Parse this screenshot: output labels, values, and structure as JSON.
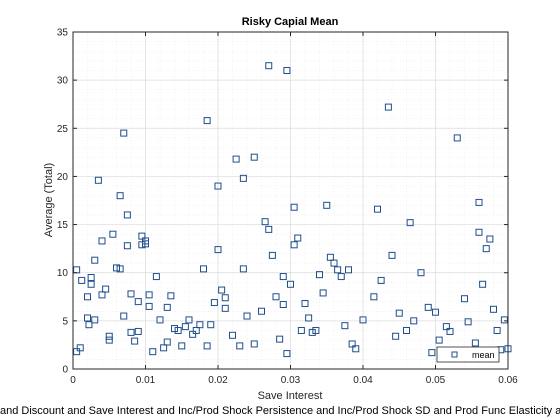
{
  "chart_data": {
    "type": "scatter",
    "title": "Risky Capial Mean",
    "xlabel": "Save Interest",
    "ylabel": "Average (Total)",
    "caption": "and Discount and Save Interest and Inc/Prod Shock Persistence and Inc/Prod Shock SD and Prod Func Elasticity a",
    "xlim": [
      0,
      0.06
    ],
    "ylim": [
      0,
      35
    ],
    "xticks": [
      0,
      0.01,
      0.02,
      0.03,
      0.04,
      0.05,
      0.06
    ],
    "xtick_labels": [
      "0",
      "0.01",
      "0.02",
      "0.03",
      "0.04",
      "0.05",
      "0.06"
    ],
    "yticks": [
      0,
      5,
      10,
      15,
      20,
      25,
      30,
      35
    ],
    "ytick_labels": [
      "0",
      "5",
      "10",
      "15",
      "20",
      "25",
      "30",
      "35"
    ],
    "grid": true,
    "minor_grid": true,
    "legend_position": "bottom-right",
    "series": [
      {
        "name": "mean",
        "marker": "square",
        "color": "#1f4e8c",
        "points": [
          [
            0.0005,
            10.3
          ],
          [
            0.0005,
            1.8
          ],
          [
            0.001,
            2.2
          ],
          [
            0.0012,
            9.2
          ],
          [
            0.002,
            7.5
          ],
          [
            0.002,
            5.3
          ],
          [
            0.0022,
            4.6
          ],
          [
            0.0025,
            9.5
          ],
          [
            0.003,
            11.3
          ],
          [
            0.0025,
            8.8
          ],
          [
            0.003,
            5.1
          ],
          [
            0.0035,
            19.6
          ],
          [
            0.004,
            13.3
          ],
          [
            0.004,
            7.7
          ],
          [
            0.0045,
            8.3
          ],
          [
            0.005,
            3.4
          ],
          [
            0.005,
            3.0
          ],
          [
            0.0055,
            14.0
          ],
          [
            0.006,
            10.5
          ],
          [
            0.0065,
            10.4
          ],
          [
            0.0065,
            18.0
          ],
          [
            0.007,
            24.5
          ],
          [
            0.0075,
            16.0
          ],
          [
            0.0075,
            12.8
          ],
          [
            0.007,
            5.5
          ],
          [
            0.008,
            7.8
          ],
          [
            0.008,
            3.8
          ],
          [
            0.0085,
            2.9
          ],
          [
            0.009,
            7.0
          ],
          [
            0.009,
            3.9
          ],
          [
            0.0095,
            13.8
          ],
          [
            0.0095,
            12.9
          ],
          [
            0.01,
            13.3
          ],
          [
            0.01,
            13.0
          ],
          [
            0.0105,
            7.7
          ],
          [
            0.0105,
            6.5
          ],
          [
            0.011,
            1.8
          ],
          [
            0.0115,
            9.6
          ],
          [
            0.012,
            5.1
          ],
          [
            0.0125,
            2.2
          ],
          [
            0.013,
            2.8
          ],
          [
            0.013,
            6.4
          ],
          [
            0.0135,
            7.6
          ],
          [
            0.014,
            4.2
          ],
          [
            0.0145,
            4.0
          ],
          [
            0.015,
            2.4
          ],
          [
            0.0155,
            4.4
          ],
          [
            0.016,
            5.1
          ],
          [
            0.0165,
            3.6
          ],
          [
            0.017,
            4.0
          ],
          [
            0.0175,
            4.6
          ],
          [
            0.018,
            10.4
          ],
          [
            0.0185,
            25.8
          ],
          [
            0.0185,
            2.4
          ],
          [
            0.019,
            4.6
          ],
          [
            0.0195,
            6.9
          ],
          [
            0.02,
            19.0
          ],
          [
            0.02,
            12.4
          ],
          [
            0.0205,
            8.2
          ],
          [
            0.021,
            7.4
          ],
          [
            0.021,
            6.3
          ],
          [
            0.022,
            3.5
          ],
          [
            0.0225,
            21.8
          ],
          [
            0.023,
            2.4
          ],
          [
            0.0235,
            19.8
          ],
          [
            0.0235,
            10.4
          ],
          [
            0.024,
            5.5
          ],
          [
            0.025,
            22.0
          ],
          [
            0.025,
            2.6
          ],
          [
            0.026,
            6.0
          ],
          [
            0.0265,
            15.3
          ],
          [
            0.027,
            31.5
          ],
          [
            0.027,
            14.5
          ],
          [
            0.0275,
            11.8
          ],
          [
            0.028,
            7.5
          ],
          [
            0.0285,
            3.1
          ],
          [
            0.029,
            9.6
          ],
          [
            0.029,
            6.7
          ],
          [
            0.0295,
            31.0
          ],
          [
            0.0295,
            1.6
          ],
          [
            0.03,
            8.8
          ],
          [
            0.0305,
            16.8
          ],
          [
            0.0305,
            12.9
          ],
          [
            0.031,
            13.6
          ],
          [
            0.0315,
            4.0
          ],
          [
            0.032,
            6.8
          ],
          [
            0.0325,
            5.3
          ],
          [
            0.033,
            3.8
          ],
          [
            0.0335,
            4.0
          ],
          [
            0.034,
            9.8
          ],
          [
            0.0345,
            7.9
          ],
          [
            0.035,
            17.0
          ],
          [
            0.0355,
            11.6
          ],
          [
            0.036,
            11.0
          ],
          [
            0.0365,
            10.3
          ],
          [
            0.037,
            9.6
          ],
          [
            0.0375,
            4.5
          ],
          [
            0.038,
            10.3
          ],
          [
            0.0385,
            2.6
          ],
          [
            0.039,
            2.1
          ],
          [
            0.04,
            5.1
          ],
          [
            0.0415,
            7.5
          ],
          [
            0.042,
            16.6
          ],
          [
            0.0425,
            9.2
          ],
          [
            0.0435,
            27.2
          ],
          [
            0.044,
            11.8
          ],
          [
            0.0445,
            3.4
          ],
          [
            0.045,
            5.8
          ],
          [
            0.046,
            4.0
          ],
          [
            0.047,
            5.0
          ],
          [
            0.0465,
            15.2
          ],
          [
            0.048,
            10.0
          ],
          [
            0.049,
            6.4
          ],
          [
            0.0495,
            1.7
          ],
          [
            0.05,
            5.9
          ],
          [
            0.0505,
            3.0
          ],
          [
            0.0515,
            4.4
          ],
          [
            0.052,
            3.9
          ],
          [
            0.053,
            24.0
          ],
          [
            0.054,
            7.3
          ],
          [
            0.0545,
            4.9
          ],
          [
            0.0555,
            2.7
          ],
          [
            0.056,
            17.3
          ],
          [
            0.056,
            14.2
          ],
          [
            0.0565,
            8.8
          ],
          [
            0.057,
            12.5
          ],
          [
            0.0575,
            13.5
          ],
          [
            0.058,
            6.2
          ],
          [
            0.0585,
            4.0
          ],
          [
            0.059,
            2.0
          ],
          [
            0.0595,
            5.1
          ],
          [
            0.06,
            2.1
          ]
        ]
      }
    ]
  }
}
